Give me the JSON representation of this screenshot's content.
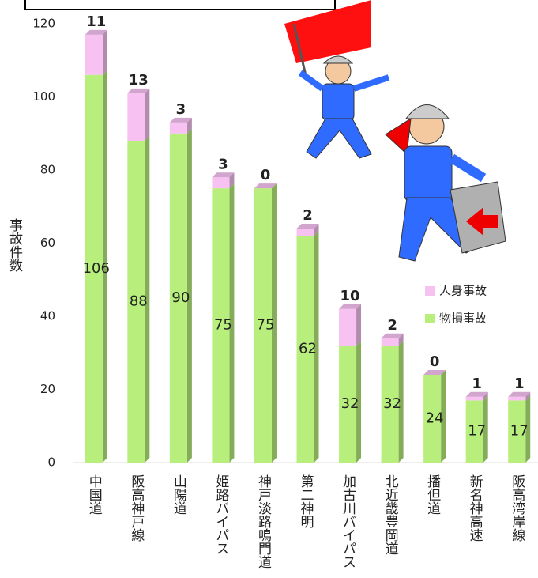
{
  "chart_data": {
    "type": "bar",
    "stacked": true,
    "y_label": "事故件数",
    "categories": [
      "中国道",
      "阪高神戸線",
      "山陽道",
      "姫路バイパス",
      "神戸淡路鳴門道",
      "第二神明",
      "加古川バイパス",
      "北近畿豊岡道",
      "播但道",
      "新名神高速",
      "阪高湾岸線"
    ],
    "series": [
      {
        "name": "物損事故",
        "color": "#b8ef7c",
        "values": [
          106,
          88,
          90,
          75,
          75,
          62,
          32,
          32,
          24,
          17,
          17
        ]
      },
      {
        "name": "人身事故",
        "color": "#f7c2f2",
        "values": [
          11,
          13,
          3,
          3,
          0,
          2,
          10,
          2,
          0,
          1,
          1
        ]
      }
    ],
    "ylim": [
      0,
      120
    ],
    "yticks": [
      0,
      20,
      40,
      60,
      80,
      100,
      120
    ],
    "grid": false
  }
}
